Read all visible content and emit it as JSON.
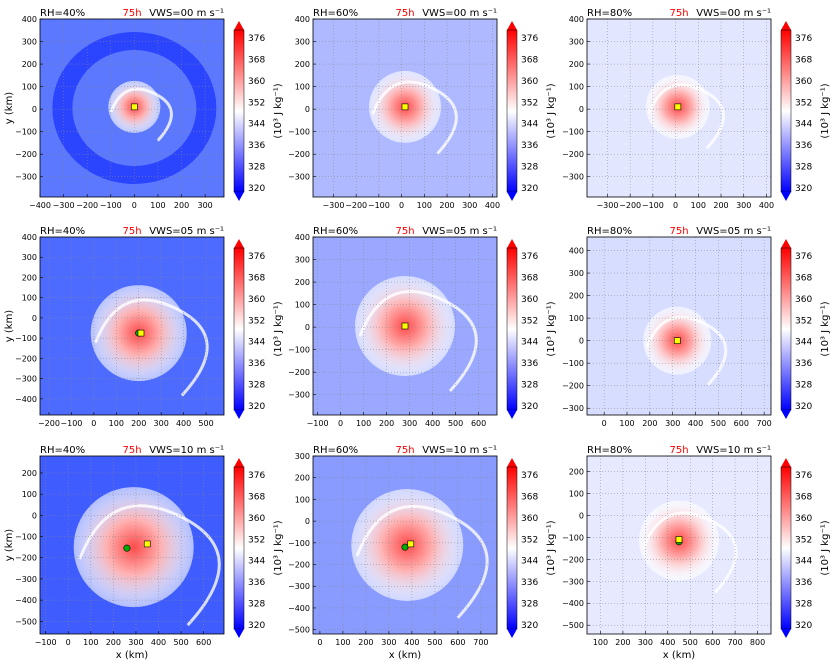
{
  "colors": {
    "low": "#0000ff",
    "mid": "#ffffff",
    "high": "#ff0000",
    "marker_yellow": "#ffff00",
    "marker_green": "#00aa00",
    "time_label": "#ff0000"
  },
  "colorbar": {
    "ticks": [
      "320",
      "328",
      "336",
      "344",
      "352",
      "360",
      "368",
      "376"
    ],
    "label": "(10³ J kg⁻¹)"
  },
  "chart_data": [
    {
      "type": "heatmap",
      "rh": "RH=40%",
      "time": "75h",
      "vws": "VWS=00 m s⁻¹",
      "ylabel": "y (km)",
      "xlabel": "",
      "xlim": [
        -400,
        380
      ],
      "ylim": [
        -390,
        400
      ],
      "xticks": [
        "−400",
        "−300",
        "−200",
        "−100",
        "0",
        "100",
        "200",
        "300"
      ],
      "yticks": [
        "400",
        "300",
        "200",
        "100",
        "0",
        "−100",
        "−200",
        "−300"
      ],
      "center": [
        0,
        10
      ],
      "yellow": [
        0,
        10
      ],
      "green": null
    },
    {
      "type": "heatmap",
      "rh": "RH=60%",
      "time": "75h",
      "vws": "VWS=00 m s⁻¹",
      "ylabel": "",
      "xlabel": "",
      "xlim": [
        -390,
        420
      ],
      "ylim": [
        -390,
        400
      ],
      "xticks": [
        "−300",
        "−200",
        "−100",
        "0",
        "100",
        "200",
        "300",
        "400"
      ],
      "yticks": [
        "400",
        "300",
        "200",
        "100",
        "0",
        "−100",
        "−200",
        "−300"
      ],
      "center": [
        15,
        10
      ],
      "yellow": [
        15,
        10
      ],
      "green": null
    },
    {
      "type": "heatmap",
      "rh": "RH=80%",
      "time": "75h",
      "vws": "VWS=00 m s⁻¹",
      "ylabel": "",
      "xlabel": "",
      "xlim": [
        -390,
        420
      ],
      "ylim": [
        -390,
        400
      ],
      "xticks": [
        "−300",
        "−200",
        "−100",
        "0",
        "100",
        "200",
        "300",
        "400"
      ],
      "yticks": [
        "400",
        "300",
        "200",
        "100",
        "0",
        "−100",
        "−200",
        "−300"
      ],
      "center": [
        10,
        10
      ],
      "yellow": [
        10,
        10
      ],
      "green": null
    },
    {
      "type": "heatmap",
      "rh": "RH=40%",
      "time": "75h",
      "vws": "VWS=05 m s⁻¹",
      "ylabel": "y (km)",
      "xlabel": "",
      "xlim": [
        -240,
        580
      ],
      "ylim": [
        -480,
        400
      ],
      "xticks": [
        "−200",
        "−100",
        "0",
        "100",
        "200",
        "300",
        "400",
        "500"
      ],
      "yticks": [
        "400",
        "300",
        "200",
        "100",
        "0",
        "−100",
        "−200",
        "−300",
        "−400"
      ],
      "center": [
        200,
        -75
      ],
      "yellow": [
        210,
        -75
      ],
      "green": [
        200,
        -75
      ]
    },
    {
      "type": "heatmap",
      "rh": "RH=60%",
      "time": "75h",
      "vws": "VWS=05 m s⁻¹",
      "ylabel": "",
      "xlabel": "",
      "xlim": [
        -120,
        680
      ],
      "ylim": [
        -390,
        400
      ],
      "xticks": [
        "−100",
        "0",
        "100",
        "200",
        "300",
        "400",
        "500",
        "600"
      ],
      "yticks": [
        "400",
        "300",
        "200",
        "100",
        "0",
        "−100",
        "−200",
        "−300"
      ],
      "center": [
        280,
        5
      ],
      "yellow": [
        280,
        5
      ],
      "green": null
    },
    {
      "type": "heatmap",
      "rh": "RH=80%",
      "time": "75h",
      "vws": "VWS=05 m s⁻¹",
      "ylabel": "",
      "xlabel": "",
      "xlim": [
        -75,
        730
      ],
      "ylim": [
        -330,
        460
      ],
      "xticks": [
        "0",
        "100",
        "200",
        "300",
        "400",
        "500",
        "600",
        "700"
      ],
      "yticks": [
        "400",
        "300",
        "200",
        "100",
        "0",
        "−100",
        "−200",
        "−300"
      ],
      "center": [
        320,
        0
      ],
      "yellow": [
        320,
        0
      ],
      "green": null
    },
    {
      "type": "heatmap",
      "rh": "RH=40%",
      "time": "75h",
      "vws": "VWS=10 m s⁻¹",
      "ylabel": "y (km)",
      "xlabel": "x (km)",
      "xlim": [
        -125,
        690
      ],
      "ylim": [
        -560,
        280
      ],
      "xticks": [
        "−100",
        "0",
        "100",
        "200",
        "300",
        "400",
        "500",
        "600"
      ],
      "yticks": [
        "200",
        "100",
        "0",
        "−100",
        "−200",
        "−300",
        "−400",
        "−500"
      ],
      "center": [
        290,
        -150
      ],
      "yellow": [
        350,
        -135
      ],
      "green": [
        260,
        -155
      ]
    },
    {
      "type": "heatmap",
      "rh": "RH=60%",
      "time": "75h",
      "vws": "VWS=10 m s⁻¹",
      "ylabel": "",
      "xlabel": "x (km)",
      "xlim": [
        -30,
        770
      ],
      "ylim": [
        -520,
        300
      ],
      "xticks": [
        "0",
        "100",
        "200",
        "300",
        "400",
        "500",
        "600",
        "700"
      ],
      "yticks": [
        "300",
        "200",
        "100",
        "0",
        "−100",
        "−200",
        "−300",
        "−400",
        "−500"
      ],
      "center": [
        380,
        -110
      ],
      "yellow": [
        395,
        -105
      ],
      "green": [
        370,
        -120
      ]
    },
    {
      "type": "heatmap",
      "rh": "RH=80%",
      "time": "75h",
      "vws": "VWS=10 m s⁻¹",
      "ylabel": "",
      "xlabel": "x (km)",
      "xlim": [
        40,
        860
      ],
      "ylim": [
        -540,
        270
      ],
      "xticks": [
        "100",
        "200",
        "300",
        "400",
        "500",
        "600",
        "700",
        "800"
      ],
      "yticks": [
        "200",
        "100",
        "0",
        "−100",
        "−200",
        "−300",
        "−400",
        "−500"
      ],
      "center": [
        450,
        -115
      ],
      "yellow": [
        450,
        -110
      ],
      "green": [
        450,
        -120
      ]
    }
  ]
}
